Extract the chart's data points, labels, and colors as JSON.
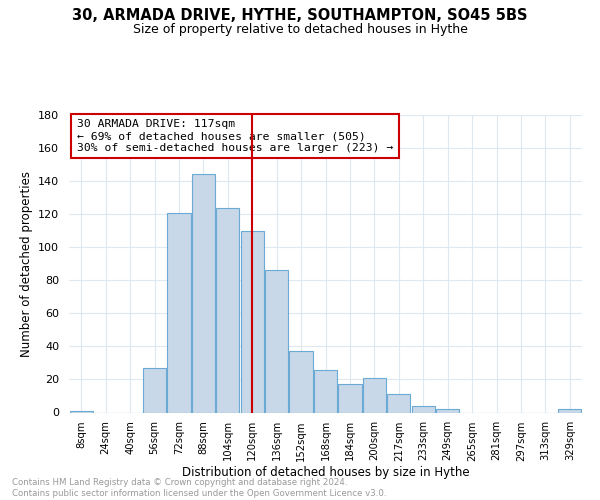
{
  "title_line1": "30, ARMADA DRIVE, HYTHE, SOUTHAMPTON, SO45 5BS",
  "title_line2": "Size of property relative to detached houses in Hythe",
  "xlabel": "Distribution of detached houses by size in Hythe",
  "ylabel": "Number of detached properties",
  "categories": [
    "8sqm",
    "24sqm",
    "40sqm",
    "56sqm",
    "72sqm",
    "88sqm",
    "104sqm",
    "120sqm",
    "136sqm",
    "152sqm",
    "168sqm",
    "184sqm",
    "200sqm",
    "217sqm",
    "233sqm",
    "249sqm",
    "265sqm",
    "281sqm",
    "297sqm",
    "313sqm",
    "329sqm"
  ],
  "values": [
    1,
    0,
    0,
    27,
    121,
    144,
    124,
    110,
    86,
    37,
    26,
    17,
    21,
    11,
    4,
    2,
    0,
    0,
    0,
    0,
    2
  ],
  "bar_color": "#c8d8e8",
  "bar_edge_color": "#6aaad4",
  "property_line_x": 120,
  "annotation_text": "30 ARMADA DRIVE: 117sqm\n← 69% of detached houses are smaller (505)\n30% of semi-detached houses are larger (223) →",
  "annotation_box_color": "#ffffff",
  "annotation_box_edge_color": "#cc0000",
  "vline_color": "#cc0000",
  "footer_text": "Contains HM Land Registry data © Crown copyright and database right 2024.\nContains public sector information licensed under the Open Government Licence v3.0.",
  "ylim": [
    0,
    180
  ],
  "yticks": [
    0,
    20,
    40,
    60,
    80,
    100,
    120,
    140,
    160,
    180
  ],
  "background_color": "#ffffff",
  "grid_color": "#dde8f0"
}
